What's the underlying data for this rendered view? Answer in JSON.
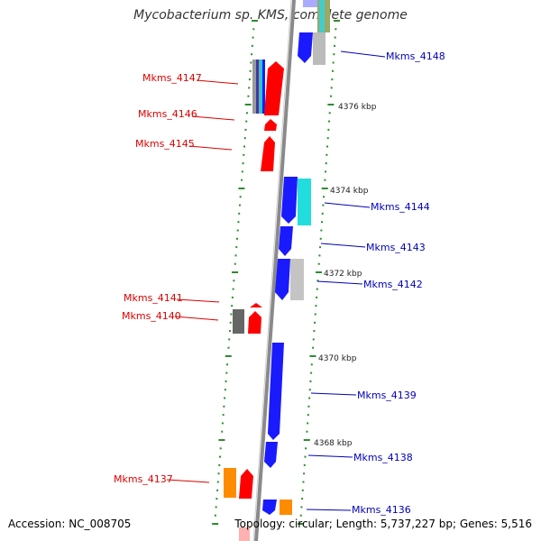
{
  "title": "Mycobacterium sp. KMS, complete genome",
  "footer": {
    "accession": "Accession: NC_008705",
    "summary": "Topology: circular; Length: 5,737,227 bp; Genes: 5,516"
  },
  "colors": {
    "forward_label": "#dd0000",
    "reverse_label": "#0000bb",
    "backbone": "#888888",
    "ticks": "#2e8b2e"
  },
  "scale_marks": [
    "4376 kbp",
    "4374 kbp",
    "4372 kbp",
    "4370 kbp",
    "4368 kbp"
  ],
  "genes": {
    "left": [
      "Mkms_4147",
      "Mkms_4146",
      "Mkms_4145",
      "Mkms_4141",
      "Mkms_4140",
      "Mkms_4137"
    ],
    "right": [
      "Mkms_4148",
      "Mkms_4144",
      "Mkms_4143",
      "Mkms_4142",
      "Mkms_4139",
      "Mkms_4138",
      "Mkms_4136"
    ]
  }
}
